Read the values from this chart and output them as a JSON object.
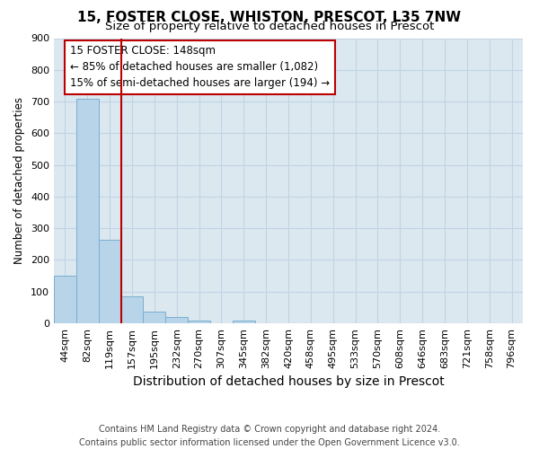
{
  "title": "15, FOSTER CLOSE, WHISTON, PRESCOT, L35 7NW",
  "subtitle": "Size of property relative to detached houses in Prescot",
  "xlabel": "Distribution of detached houses by size in Prescot",
  "ylabel": "Number of detached properties",
  "bar_labels": [
    "44sqm",
    "82sqm",
    "119sqm",
    "157sqm",
    "195sqm",
    "232sqm",
    "270sqm",
    "307sqm",
    "345sqm",
    "382sqm",
    "420sqm",
    "458sqm",
    "495sqm",
    "533sqm",
    "570sqm",
    "608sqm",
    "646sqm",
    "683sqm",
    "721sqm",
    "758sqm",
    "796sqm"
  ],
  "bar_values": [
    150,
    710,
    265,
    85,
    38,
    20,
    8,
    0,
    8,
    0,
    0,
    0,
    0,
    0,
    0,
    0,
    0,
    0,
    0,
    0,
    0
  ],
  "bar_color": "#b8d4e8",
  "bar_edgecolor": "#7aaed0",
  "vline_color": "#bb0000",
  "ylim": [
    0,
    900
  ],
  "yticks": [
    0,
    100,
    200,
    300,
    400,
    500,
    600,
    700,
    800,
    900
  ],
  "annotation_title": "15 FOSTER CLOSE: 148sqm",
  "annotation_line1": "← 85% of detached houses are smaller (1,082)",
  "annotation_line2": "15% of semi-detached houses are larger (194) →",
  "annotation_box_color": "#ffffff",
  "annotation_box_edgecolor": "#bb0000",
  "footer1": "Contains HM Land Registry data © Crown copyright and database right 2024.",
  "footer2": "Contains public sector information licensed under the Open Government Licence v3.0.",
  "plot_bg_color": "#dce8f0",
  "fig_bg_color": "#ffffff",
  "grid_color": "#c0d4e4",
  "title_fontsize": 11,
  "subtitle_fontsize": 9.5,
  "xlabel_fontsize": 10,
  "ylabel_fontsize": 8.5,
  "tick_fontsize": 8,
  "annot_fontsize": 8.5,
  "footer_fontsize": 7
}
